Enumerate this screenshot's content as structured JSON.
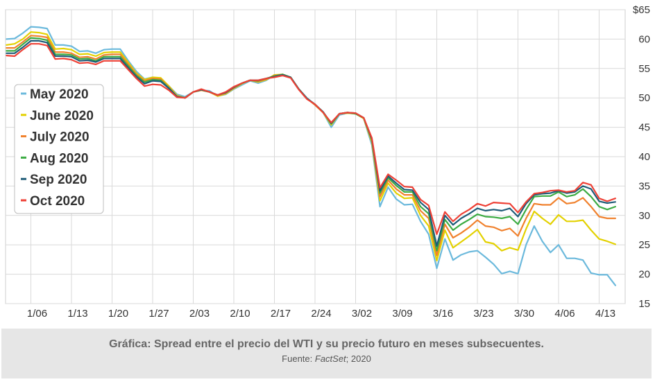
{
  "chart_data": {
    "type": "line",
    "title": "",
    "xlabel": "",
    "ylabel": "",
    "currency_symbol": "$",
    "ylim": [
      15,
      65
    ],
    "yticks": [
      15,
      20,
      25,
      30,
      35,
      40,
      45,
      50,
      55,
      60,
      65
    ],
    "ytick_labels": [
      "15",
      "20",
      "25",
      "30",
      "35",
      "40",
      "45",
      "50",
      "55",
      "60",
      "$65"
    ],
    "x_tick_labels": [
      "1/06",
      "1/13",
      "1/20",
      "1/27",
      "2/03",
      "2/10",
      "2/17",
      "2/24",
      "3/02",
      "3/09",
      "3/16",
      "3/23",
      "3/30",
      "4/06",
      "4/13"
    ],
    "x_tick_index": [
      3,
      8,
      13,
      18,
      23,
      28,
      33,
      38,
      43,
      48,
      53,
      58,
      63,
      68,
      73
    ],
    "x": [
      "1/01",
      "1/02",
      "1/03",
      "1/06",
      "1/07",
      "1/08",
      "1/09",
      "1/10",
      "1/13",
      "1/14",
      "1/15",
      "1/16",
      "1/17",
      "1/21",
      "1/22",
      "1/23",
      "1/24",
      "1/27",
      "1/28",
      "1/29",
      "1/30",
      "1/31",
      "2/03",
      "2/04",
      "2/05",
      "2/06",
      "2/07",
      "2/10",
      "2/11",
      "2/12",
      "2/13",
      "2/14",
      "2/18",
      "2/19",
      "2/20",
      "2/21",
      "2/24",
      "2/25",
      "2/26",
      "2/27",
      "2/28",
      "3/02",
      "3/03",
      "3/04",
      "3/05",
      "3/06",
      "3/09",
      "3/10",
      "3/11",
      "3/12",
      "3/13",
      "3/16",
      "3/17",
      "3/18",
      "3/19",
      "3/20",
      "3/23",
      "3/24",
      "3/25",
      "3/26",
      "3/27",
      "3/30",
      "3/31",
      "4/01",
      "4/02",
      "4/03",
      "4/06",
      "4/07",
      "4/08",
      "4/09",
      "4/13",
      "4/14",
      "4/15",
      "4/16",
      "4/17",
      "4/20"
    ],
    "grid": true,
    "legend_position": "left",
    "series": [
      {
        "name": "May 2020",
        "color": "#6bb9dc",
        "values": [
          60.0,
          60.1,
          61.0,
          62.1,
          62.0,
          61.8,
          59.0,
          59.0,
          58.8,
          57.9,
          58.0,
          57.6,
          58.2,
          58.3,
          58.3,
          56.3,
          54.5,
          53.2,
          53.5,
          53.0,
          52.0,
          50.6,
          50.2,
          51.0,
          51.3,
          51.2,
          50.3,
          50.6,
          51.5,
          52.2,
          52.9,
          52.5,
          53.0,
          53.9,
          53.8,
          53.5,
          51.5,
          50.0,
          48.8,
          47.5,
          45.0,
          47.1,
          47.4,
          47.3,
          46.5,
          42.0,
          31.5,
          34.8,
          32.8,
          31.8,
          31.9,
          29.0,
          26.8,
          21.0,
          26.0,
          22.4,
          23.3,
          23.8,
          24.0,
          22.9,
          21.7,
          20.1,
          20.5,
          20.1,
          25.0,
          28.2,
          25.6,
          23.7,
          25.0,
          22.7,
          22.7,
          22.4,
          20.2,
          19.9,
          19.9,
          18.1
        ]
      },
      {
        "name": "June 2020",
        "color": "#e3d100",
        "values": [
          59.0,
          59.2,
          60.0,
          61.2,
          61.1,
          60.8,
          58.3,
          58.4,
          58.2,
          57.4,
          57.5,
          57.1,
          57.7,
          57.8,
          57.8,
          56.0,
          54.2,
          53.1,
          53.5,
          53.4,
          52.0,
          50.4,
          50.0,
          51.0,
          51.3,
          51.0,
          50.3,
          50.7,
          51.6,
          52.4,
          53.0,
          52.7,
          53.1,
          53.9,
          54.0,
          53.5,
          51.5,
          49.9,
          48.8,
          47.5,
          45.4,
          47.3,
          47.4,
          47.3,
          46.5,
          42.5,
          32.5,
          35.5,
          33.8,
          32.9,
          33.0,
          30.0,
          28.2,
          22.3,
          27.5,
          24.5,
          25.5,
          26.5,
          27.6,
          25.5,
          25.2,
          24.0,
          24.5,
          24.1,
          27.7,
          30.7,
          29.5,
          28.5,
          30.1,
          29.0,
          29.0,
          29.2,
          27.5,
          26.0,
          25.6,
          25.1
        ]
      },
      {
        "name": "July 2020",
        "color": "#f0812d",
        "values": [
          58.5,
          58.5,
          59.5,
          60.6,
          60.5,
          60.3,
          57.8,
          57.8,
          57.6,
          56.9,
          57.0,
          56.6,
          57.3,
          57.4,
          57.4,
          55.7,
          54.0,
          52.9,
          53.3,
          53.2,
          51.8,
          50.3,
          50.0,
          51.0,
          51.3,
          51.0,
          50.4,
          50.8,
          51.7,
          52.5,
          53.0,
          52.8,
          53.2,
          53.8,
          54.0,
          53.5,
          51.5,
          49.9,
          48.8,
          47.6,
          45.6,
          47.3,
          47.5,
          47.3,
          46.6,
          42.8,
          33.2,
          36.0,
          34.5,
          33.5,
          33.5,
          30.8,
          29.5,
          23.2,
          28.5,
          26.2,
          27.0,
          28.0,
          29.2,
          28.2,
          28.0,
          27.4,
          27.8,
          26.5,
          29.5,
          32.0,
          31.8,
          31.8,
          33.0,
          32.0,
          32.2,
          33.0,
          31.5,
          29.8,
          29.5,
          29.5
        ]
      },
      {
        "name": "Aug 2020",
        "color": "#3bab42",
        "values": [
          58.0,
          58.0,
          59.1,
          60.2,
          60.1,
          59.8,
          57.4,
          57.4,
          57.3,
          56.6,
          56.7,
          56.3,
          57.0,
          57.0,
          57.0,
          55.4,
          53.8,
          52.7,
          53.1,
          53.0,
          51.7,
          50.2,
          50.0,
          51.0,
          51.4,
          51.0,
          50.5,
          50.9,
          51.8,
          52.5,
          53.0,
          52.9,
          53.3,
          53.7,
          54.0,
          53.5,
          51.5,
          49.9,
          48.9,
          47.6,
          45.6,
          47.3,
          47.5,
          47.3,
          46.6,
          42.9,
          33.8,
          36.4,
          35.1,
          34.0,
          34.0,
          31.5,
          30.3,
          24.0,
          29.3,
          27.5,
          28.5,
          29.3,
          30.2,
          29.8,
          29.7,
          29.5,
          29.8,
          28.5,
          31.0,
          33.2,
          33.3,
          33.3,
          34.0,
          33.2,
          33.5,
          34.5,
          33.2,
          31.5,
          31.0,
          31.5
        ]
      },
      {
        "name": "Sep 2020",
        "color": "#1e5b78",
        "values": [
          57.6,
          57.6,
          58.6,
          59.7,
          59.7,
          59.4,
          57.1,
          57.1,
          57.0,
          56.3,
          56.4,
          56.1,
          56.7,
          56.7,
          56.7,
          55.1,
          53.6,
          52.4,
          52.9,
          52.8,
          51.6,
          50.2,
          50.0,
          51.0,
          51.4,
          51.0,
          50.5,
          50.9,
          51.8,
          52.5,
          53.0,
          53.0,
          53.3,
          53.6,
          53.9,
          53.5,
          51.5,
          49.9,
          48.9,
          47.6,
          45.7,
          47.3,
          47.5,
          47.4,
          46.6,
          43.0,
          34.2,
          36.7,
          35.5,
          34.4,
          34.3,
          32.2,
          31.0,
          24.8,
          30.0,
          28.4,
          29.5,
          30.3,
          31.2,
          30.8,
          31.0,
          30.8,
          31.2,
          29.8,
          32.0,
          33.5,
          33.7,
          33.8,
          34.2,
          33.8,
          34.0,
          35.0,
          34.5,
          32.4,
          32.1,
          32.3
        ]
      },
      {
        "name": "Oct  2020",
        "color": "#ee4035",
        "values": [
          57.2,
          57.1,
          58.2,
          59.2,
          59.2,
          58.9,
          56.6,
          56.7,
          56.5,
          55.9,
          56.0,
          55.7,
          56.3,
          56.3,
          56.3,
          54.8,
          53.3,
          52.0,
          52.3,
          52.2,
          51.3,
          50.1,
          50.0,
          51.0,
          51.5,
          51.0,
          50.5,
          51.0,
          51.9,
          52.5,
          53.0,
          53.0,
          53.3,
          53.5,
          53.8,
          53.4,
          51.4,
          49.8,
          48.9,
          47.5,
          45.8,
          47.3,
          47.5,
          47.4,
          46.6,
          43.2,
          34.7,
          37.0,
          36.0,
          34.9,
          34.8,
          32.7,
          31.7,
          26.8,
          30.6,
          29.0,
          30.2,
          31.0,
          32.0,
          31.6,
          32.2,
          32.1,
          32.0,
          30.5,
          32.3,
          33.7,
          33.9,
          34.2,
          34.3,
          34.0,
          34.2,
          35.6,
          35.2,
          32.9,
          32.4,
          32.9
        ]
      }
    ]
  },
  "caption": {
    "title": "Gráfica: Spread entre el precio del WTI y su precio futuro en meses subsecuentes.",
    "source_prefix": "Fuente: ",
    "source_name": "FactSet",
    "source_suffix": "; 2020"
  }
}
